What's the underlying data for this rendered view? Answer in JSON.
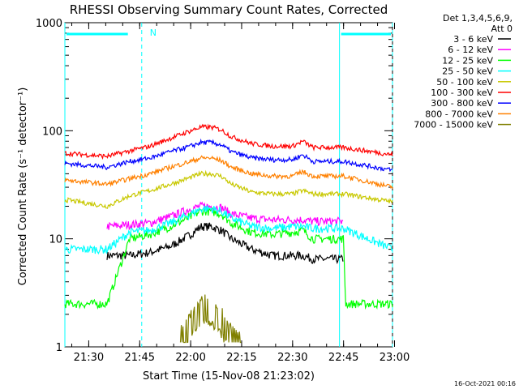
{
  "chart_data": {
    "type": "line",
    "title": "RHESSI Observing Summary Count Rates, Corrected",
    "xlabel": "Start Time (15-Nov-08 21:23:02)",
    "ylabel": "Corrected Count Rate (s⁻¹ detector⁻¹)",
    "y_scale": "log",
    "ylim": [
      1,
      1000
    ],
    "xlim_minutes": [
      21.383,
      22.99
    ],
    "x_ticks": [
      {
        "label": "21:30",
        "minutes_after_midnight_hour": 21.5
      },
      {
        "label": "21:45",
        "minutes_after_midnight_hour": 21.75
      },
      {
        "label": "22:00",
        "minutes_after_midnight_hour": 22.0
      },
      {
        "label": "22:15",
        "minutes_after_midnight_hour": 22.25
      },
      {
        "label": "22:30",
        "minutes_after_midnight_hour": 22.5
      },
      {
        "label": "22:45",
        "minutes_after_midnight_hour": 22.75
      },
      {
        "label": "23:00",
        "minutes_after_midnight_hour": 23.0
      }
    ],
    "y_ticks": [
      {
        "label": "1",
        "value": 1
      },
      {
        "label": "10",
        "value": 10
      },
      {
        "label": "100",
        "value": 100
      },
      {
        "label": "1000",
        "value": 1000
      }
    ],
    "legend": {
      "header_line1": "Det 1,3,4,5,6,9,",
      "header_line2": "Att 0",
      "placement": "right"
    },
    "annotation": {
      "label": "N",
      "hour": 21.78
    },
    "timestamp": "16-Oct-2021 00:16",
    "night_intervals": [
      {
        "start": 21.383,
        "end": 21.7,
        "night_bar": true
      },
      {
        "start": 22.73,
        "end": 22.99,
        "night_bar": true
      }
    ],
    "dashed_markers": [
      21.76,
      22.99
    ],
    "series": [
      {
        "name": "3 - 6 keV",
        "color": "#000000",
        "x": [
          21.59,
          21.7,
          21.8,
          21.9,
          22.0,
          22.05,
          22.1,
          22.15,
          22.2,
          22.3,
          22.4,
          22.5,
          22.55,
          22.6,
          22.7,
          22.75
        ],
        "y": [
          7,
          7,
          7.5,
          8.5,
          11,
          13,
          13,
          12,
          10,
          8,
          7,
          7,
          7,
          6.5,
          6.5,
          6.5
        ]
      },
      {
        "name": "6 - 12 keV",
        "color": "#ff00ff",
        "x": [
          21.59,
          21.7,
          21.8,
          21.9,
          22.0,
          22.05,
          22.1,
          22.15,
          22.2,
          22.3,
          22.4,
          22.5,
          22.55,
          22.6,
          22.7,
          22.75
        ],
        "y": [
          13,
          13.5,
          14,
          16,
          19,
          20,
          20,
          19.5,
          17,
          15.5,
          15,
          15,
          15,
          14.5,
          14.5,
          14.5
        ]
      },
      {
        "name": "12 - 25 keV",
        "color": "#00ff00",
        "x": [
          21.383,
          21.59,
          21.7,
          21.8,
          21.9,
          22.0,
          22.05,
          22.1,
          22.15,
          22.2,
          22.3,
          22.4,
          22.5,
          22.55,
          22.6,
          22.7,
          22.75,
          22.76,
          22.99
        ],
        "y": [
          2.5,
          2.5,
          10,
          11,
          13,
          16,
          18,
          18,
          17,
          14,
          11.5,
          11,
          11.5,
          12,
          10,
          10,
          10,
          2.5,
          2.5
        ]
      },
      {
        "name": "25 - 50 keV",
        "color": "#00ffff",
        "x": [
          21.383,
          21.59,
          21.7,
          21.8,
          21.9,
          22.0,
          22.05,
          22.1,
          22.15,
          22.2,
          22.3,
          22.4,
          22.5,
          22.55,
          22.6,
          22.7,
          22.75,
          22.99
        ],
        "y": [
          8,
          8,
          11.5,
          12,
          14,
          17,
          19,
          19,
          18,
          15.5,
          13,
          12.5,
          13,
          13,
          12.5,
          12.5,
          12.5,
          8
        ]
      },
      {
        "name": "50 - 100 keV",
        "color": "#c8c800",
        "x": [
          21.383,
          21.59,
          21.7,
          21.8,
          21.9,
          22.0,
          22.05,
          22.1,
          22.15,
          22.2,
          22.3,
          22.4,
          22.5,
          22.55,
          22.6,
          22.7,
          22.75,
          22.99
        ],
        "y": [
          23,
          20,
          25,
          28,
          32,
          37,
          40,
          40,
          38,
          32,
          27,
          26,
          26,
          28,
          26,
          26,
          26,
          22
        ]
      },
      {
        "name": "100 - 300 keV",
        "color": "#ff0000",
        "x": [
          21.383,
          21.59,
          21.7,
          21.8,
          21.9,
          22.0,
          22.05,
          22.1,
          22.15,
          22.2,
          22.3,
          22.4,
          22.5,
          22.55,
          22.6,
          22.7,
          22.75,
          22.99
        ],
        "y": [
          62,
          58,
          65,
          72,
          85,
          100,
          108,
          108,
          102,
          88,
          76,
          72,
          72,
          80,
          70,
          70,
          70,
          60
        ]
      },
      {
        "name": "300 - 800 keV",
        "color": "#0000ff",
        "x": [
          21.383,
          21.59,
          21.7,
          21.8,
          21.9,
          22.0,
          22.05,
          22.1,
          22.15,
          22.2,
          22.3,
          22.4,
          22.5,
          22.55,
          22.6,
          22.7,
          22.75,
          22.99
        ],
        "y": [
          50,
          46,
          52,
          56,
          64,
          72,
          78,
          78,
          74,
          64,
          56,
          54,
          54,
          60,
          52,
          52,
          52,
          43
        ]
      },
      {
        "name": "800 - 7000 keV",
        "color": "#ff8000",
        "x": [
          21.383,
          21.59,
          21.7,
          21.8,
          21.9,
          22.0,
          22.05,
          22.1,
          22.15,
          22.2,
          22.3,
          22.4,
          22.5,
          22.55,
          22.6,
          22.7,
          22.75,
          22.99
        ],
        "y": [
          35,
          32,
          36,
          40,
          46,
          52,
          56,
          56,
          53,
          46,
          40,
          38,
          38,
          42,
          38,
          38,
          38,
          30
        ]
      },
      {
        "name": "7000 - 15000 keV",
        "color": "#808000",
        "x": [
          21.95,
          22.0,
          22.05,
          22.1,
          22.15,
          22.2,
          22.25
        ],
        "y": [
          1.5,
          2,
          2.8,
          2.8,
          2.2,
          1.5,
          1.3
        ]
      }
    ]
  }
}
